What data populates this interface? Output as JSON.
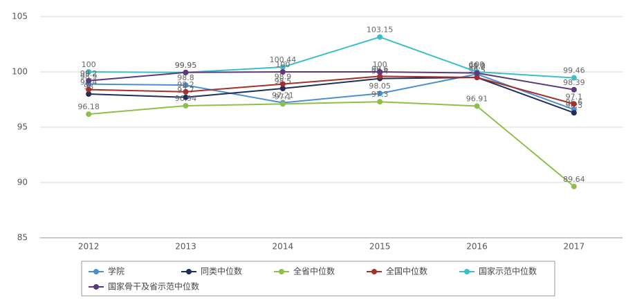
{
  "chart_data": {
    "type": "line",
    "categories": [
      "2012",
      "2013",
      "2014",
      "2015",
      "2016",
      "2017"
    ],
    "series": [
      {
        "name": "学院",
        "color": "#4a8fd0",
        "values": [
          98.9,
          98.8,
          97.21,
          98.05,
          99.8,
          96.6
        ]
      },
      {
        "name": "同类中位数",
        "color": "#1f2f5a",
        "values": [
          98.0,
          97.7,
          98.5,
          99.4,
          99.5,
          96.3
        ]
      },
      {
        "name": "全省中位数",
        "color": "#8cc04a",
        "values": [
          96.18,
          96.94,
          97.1,
          97.3,
          96.91,
          89.64
        ]
      },
      {
        "name": "全国中位数",
        "color": "#a3302c",
        "values": [
          98.4,
          98.2,
          98.9,
          99.6,
          99.5,
          97.1
        ]
      },
      {
        "name": "国家示范中位数",
        "color": "#3bbfc6",
        "values": [
          100,
          99.95,
          100.44,
          103.15,
          100.0,
          99.46
        ]
      },
      {
        "name": "国家骨干及省示范中位数",
        "color": "#5a3a7a",
        "values": [
          99.2,
          99.95,
          100,
          100,
          99.9,
          98.39
        ]
      }
    ],
    "ylim": [
      85,
      105
    ],
    "yticks": [
      85,
      90,
      95,
      100,
      105
    ],
    "grid": true,
    "legend": "bottom"
  }
}
